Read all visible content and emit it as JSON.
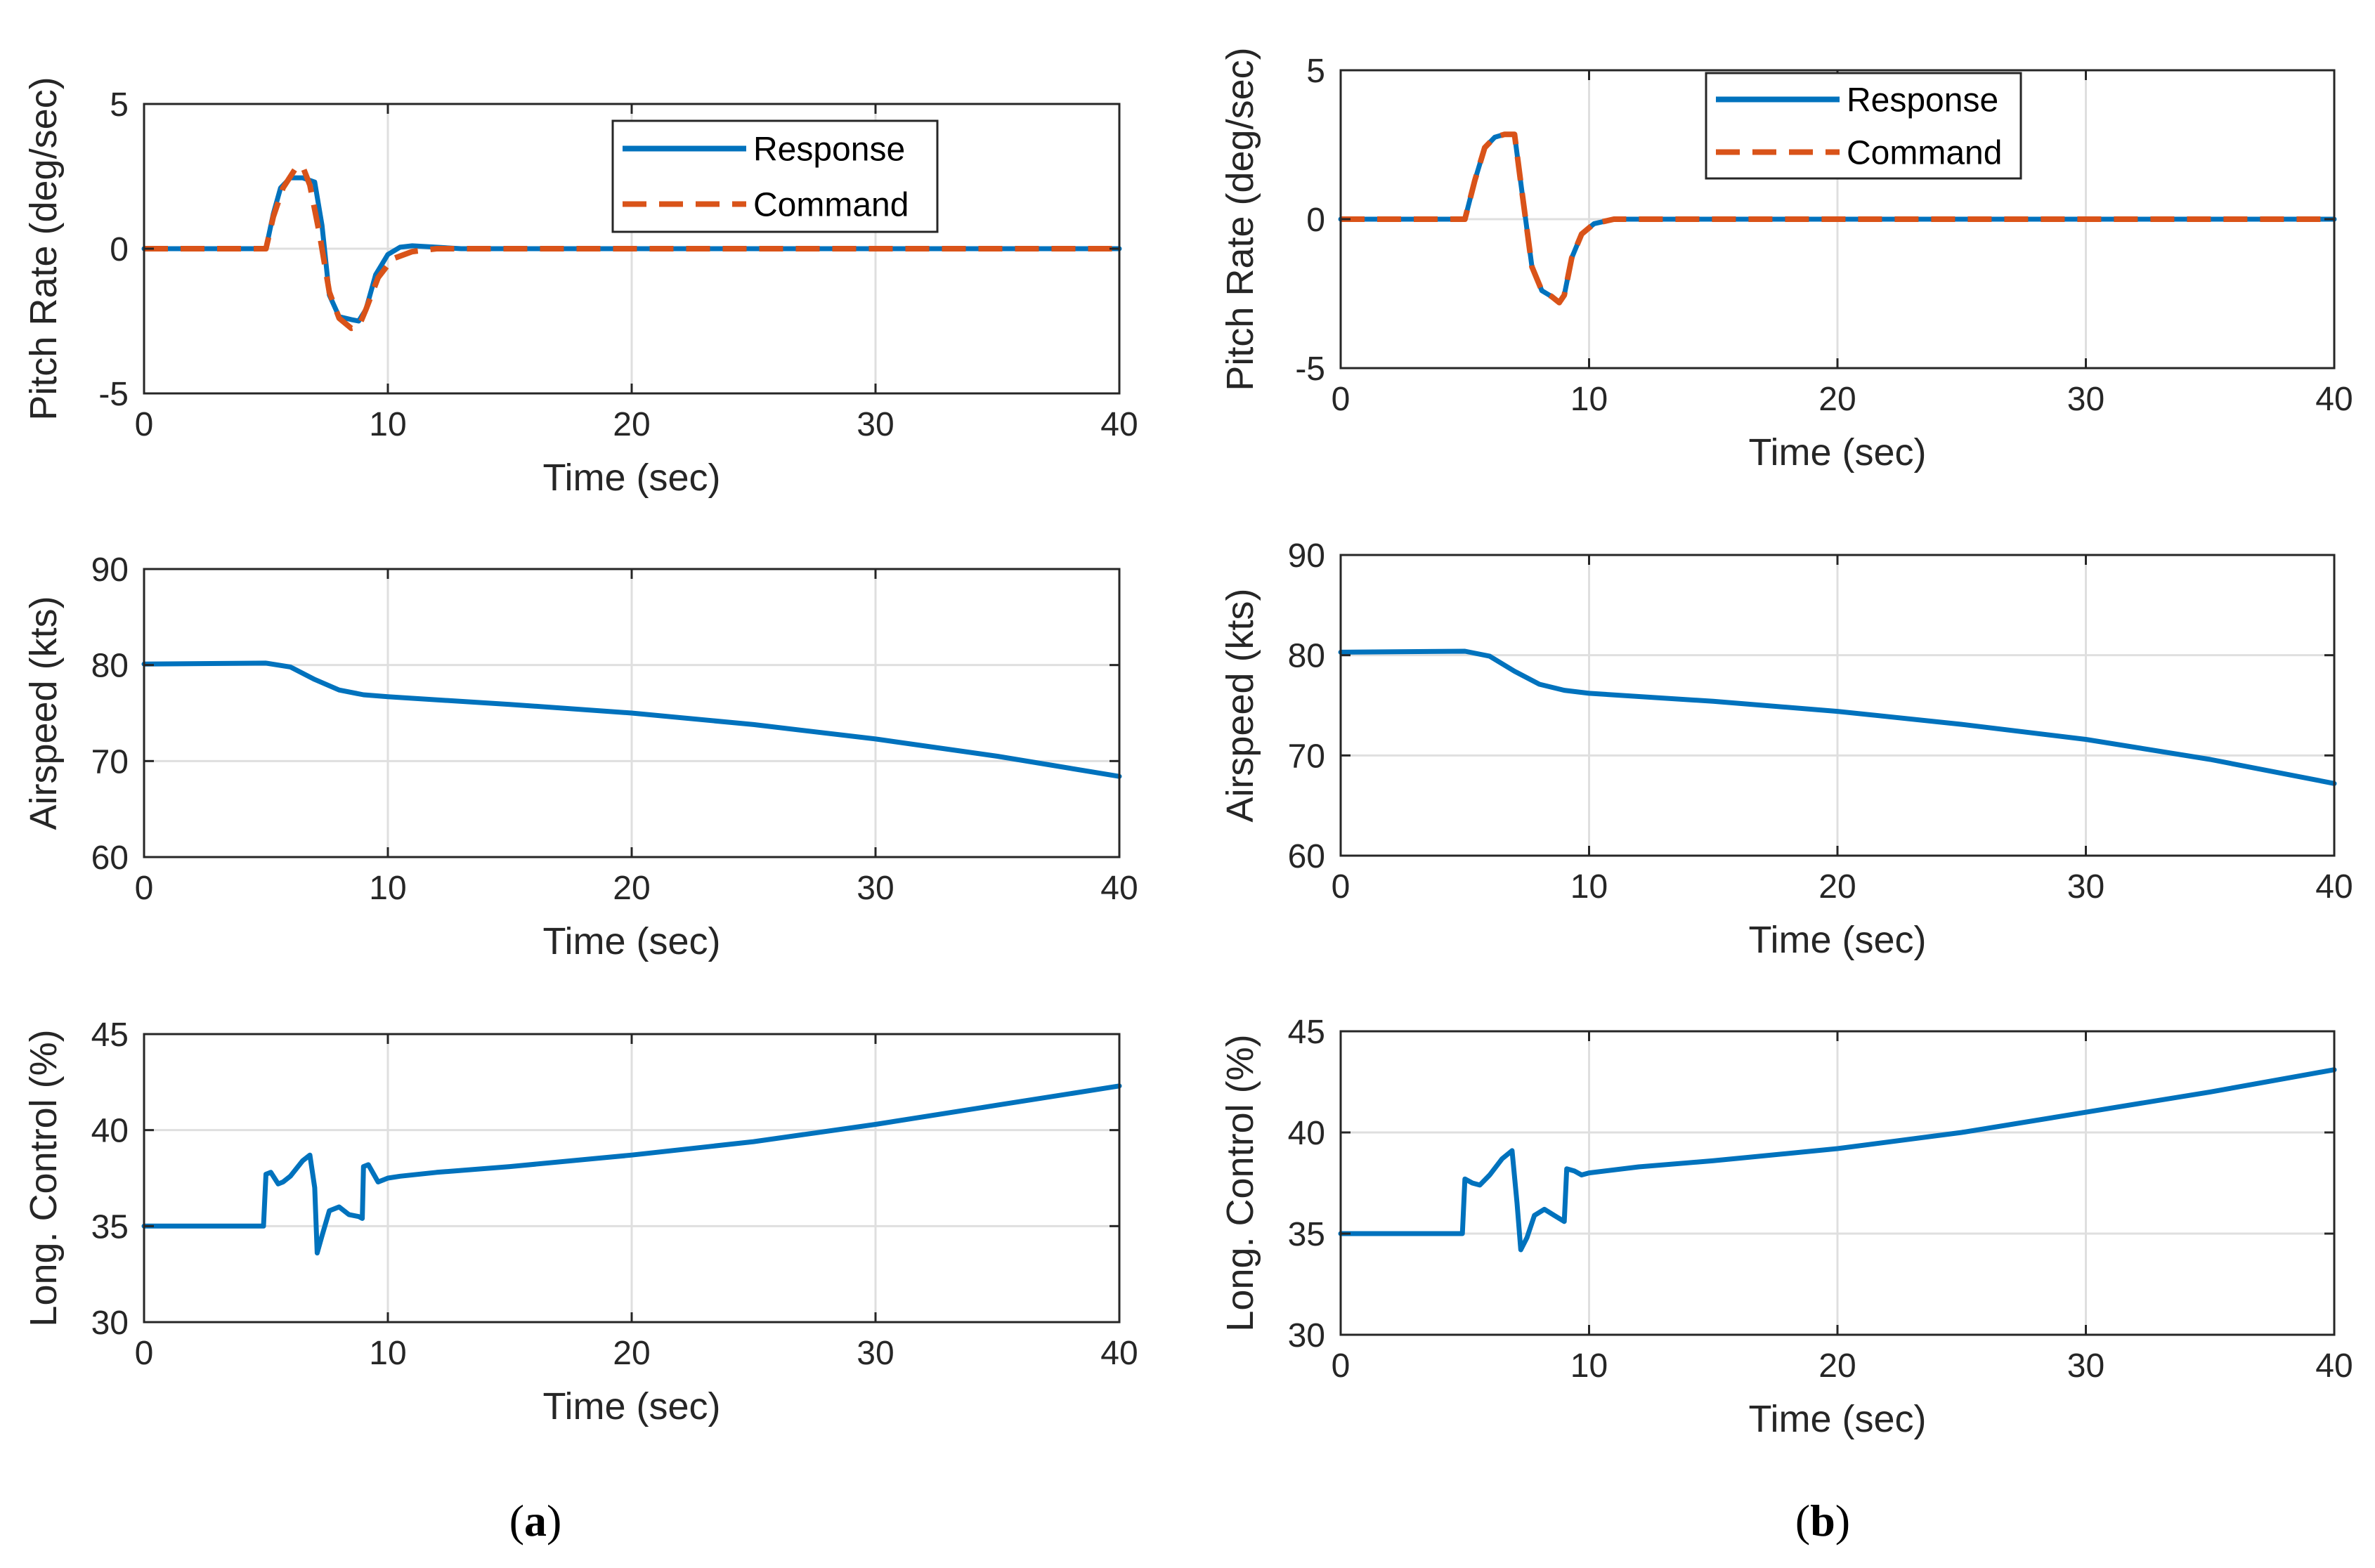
{
  "colors": {
    "response": "#0072BD",
    "command": "#D95319",
    "grid": "#DFDFDF",
    "axis": "#262626"
  },
  "panel_labels": {
    "a": {
      "open": "(",
      "letter": "a",
      "close": ")"
    },
    "b": {
      "open": "(",
      "letter": "b",
      "close": ")"
    }
  },
  "chart_data": [
    {
      "id": "a1",
      "type": "line",
      "xlabel": "Time (sec)",
      "ylabel": "Pitch Rate (deg/sec)",
      "xlim": [
        0,
        40
      ],
      "ylim": [
        -5,
        5
      ],
      "xticks": [
        0,
        10,
        20,
        30,
        40
      ],
      "yticks": [
        -5,
        0,
        5
      ],
      "grid": true,
      "legend": "top-right",
      "series": [
        {
          "name": "Response",
          "style": "solid",
          "x": [
            0,
            5,
            5.3,
            5.6,
            6.0,
            6.5,
            7.0,
            7.3,
            7.6,
            8.0,
            8.5,
            8.8,
            9.1,
            9.5,
            10.0,
            10.5,
            11,
            12,
            13,
            15,
            40
          ],
          "y": [
            0,
            0,
            1.2,
            2.1,
            2.45,
            2.45,
            2.3,
            0.8,
            -1.6,
            -2.35,
            -2.45,
            -2.5,
            -2.1,
            -0.9,
            -0.2,
            0.05,
            0.1,
            0.05,
            0,
            0,
            0
          ]
        },
        {
          "name": "Command",
          "style": "dashed",
          "x": [
            0,
            5,
            5.3,
            5.7,
            6.2,
            6.5,
            6.8,
            7.2,
            7.6,
            8.0,
            8.5,
            8.8,
            9.1,
            9.6,
            10.2,
            11,
            12,
            40
          ],
          "y": [
            0,
            0,
            1.1,
            2.1,
            2.75,
            2.85,
            2.2,
            0.5,
            -1.5,
            -2.4,
            -2.75,
            -2.7,
            -2.1,
            -1.0,
            -0.35,
            -0.1,
            0,
            0
          ]
        }
      ]
    },
    {
      "id": "a2",
      "type": "line",
      "xlabel": "Time (sec)",
      "ylabel": "Airspeed (kts)",
      "xlim": [
        0,
        40
      ],
      "ylim": [
        60,
        90
      ],
      "xticks": [
        0,
        10,
        20,
        30,
        40
      ],
      "yticks": [
        60,
        70,
        80,
        90
      ],
      "grid": true,
      "legend": "none",
      "series": [
        {
          "name": "Response",
          "style": "solid",
          "x": [
            0,
            5,
            6,
            7,
            8,
            9,
            10,
            15,
            20,
            25,
            30,
            35,
            40
          ],
          "y": [
            80.1,
            80.2,
            79.8,
            78.5,
            77.4,
            76.9,
            76.7,
            75.9,
            75.0,
            73.8,
            72.3,
            70.5,
            68.4
          ]
        }
      ]
    },
    {
      "id": "a3",
      "type": "line",
      "xlabel": "Time (sec)",
      "ylabel": "Long. Control (%)",
      "xlim": [
        0,
        40
      ],
      "ylim": [
        30,
        45
      ],
      "xticks": [
        0,
        10,
        20,
        30,
        40
      ],
      "yticks": [
        30,
        35,
        40,
        45
      ],
      "grid": true,
      "legend": "none",
      "series": [
        {
          "name": "Response",
          "style": "solid",
          "x": [
            0,
            4.9,
            5.0,
            5.2,
            5.5,
            5.7,
            6.0,
            6.5,
            6.8,
            7.0,
            7.1,
            7.3,
            7.6,
            8.0,
            8.4,
            8.8,
            8.95,
            9.0,
            9.2,
            9.6,
            9.8,
            10.0,
            10.5,
            12,
            15,
            20,
            25,
            30,
            35,
            40
          ],
          "y": [
            35.0,
            35.0,
            37.7,
            37.8,
            37.2,
            37.3,
            37.6,
            38.4,
            38.7,
            37.0,
            33.6,
            34.5,
            35.8,
            36.0,
            35.6,
            35.5,
            35.4,
            38.1,
            38.2,
            37.3,
            37.4,
            37.5,
            37.6,
            37.8,
            38.1,
            38.7,
            39.4,
            40.3,
            41.3,
            42.3
          ]
        }
      ]
    },
    {
      "id": "b1",
      "type": "line",
      "xlabel": "Time (sec)",
      "ylabel": "Pitch Rate (deg/sec)",
      "xlim": [
        0,
        40
      ],
      "ylim": [
        -5,
        5
      ],
      "xticks": [
        0,
        10,
        20,
        30,
        40
      ],
      "yticks": [
        -5,
        0,
        5
      ],
      "grid": true,
      "legend": "top-center",
      "series": [
        {
          "name": "Response",
          "style": "solid",
          "x": [
            0,
            5,
            5.4,
            5.8,
            6.2,
            6.6,
            7.0,
            7.3,
            7.7,
            8.1,
            8.5,
            8.8,
            9.0,
            9.3,
            9.7,
            10.2,
            11,
            12,
            40
          ],
          "y": [
            0,
            0,
            1.3,
            2.4,
            2.75,
            2.85,
            2.85,
            0.9,
            -1.6,
            -2.4,
            -2.6,
            -2.8,
            -2.55,
            -1.3,
            -0.5,
            -0.15,
            0,
            0,
            0
          ]
        },
        {
          "name": "Command",
          "style": "dashed",
          "x": [
            0,
            5,
            5.4,
            5.8,
            6.2,
            6.6,
            7.0,
            7.3,
            7.7,
            8.1,
            8.5,
            8.8,
            9.0,
            9.3,
            9.7,
            10.2,
            11,
            12,
            40
          ],
          "y": [
            0,
            0,
            1.3,
            2.4,
            2.75,
            2.85,
            2.85,
            0.9,
            -1.6,
            -2.4,
            -2.6,
            -2.8,
            -2.55,
            -1.3,
            -0.5,
            -0.15,
            0,
            0,
            0
          ]
        }
      ]
    },
    {
      "id": "b2",
      "type": "line",
      "xlabel": "Time (sec)",
      "ylabel": "Airspeed (kts)",
      "xlim": [
        0,
        40
      ],
      "ylim": [
        60,
        90
      ],
      "xticks": [
        0,
        10,
        20,
        30,
        40
      ],
      "yticks": [
        60,
        70,
        80,
        90
      ],
      "grid": true,
      "legend": "none",
      "series": [
        {
          "name": "Response",
          "style": "solid",
          "x": [
            0,
            5,
            6,
            7,
            8,
            9,
            10,
            15,
            20,
            25,
            30,
            35,
            40
          ],
          "y": [
            80.3,
            80.4,
            79.9,
            78.4,
            77.1,
            76.5,
            76.2,
            75.4,
            74.4,
            73.1,
            71.6,
            69.6,
            67.2
          ]
        }
      ]
    },
    {
      "id": "b3",
      "type": "line",
      "xlabel": "Time (sec)",
      "ylabel": "Long. Control (%)",
      "xlim": [
        0,
        40
      ],
      "ylim": [
        30,
        45
      ],
      "xticks": [
        0,
        10,
        20,
        30,
        40
      ],
      "yticks": [
        30,
        35,
        40,
        45
      ],
      "grid": true,
      "legend": "none",
      "series": [
        {
          "name": "Response",
          "style": "solid",
          "x": [
            0,
            4.9,
            5.0,
            5.3,
            5.6,
            6.0,
            6.5,
            6.9,
            7.1,
            7.25,
            7.5,
            7.8,
            8.2,
            8.6,
            9.0,
            9.1,
            9.4,
            9.7,
            10.0,
            12,
            15,
            20,
            25,
            30,
            35,
            40
          ],
          "y": [
            35.0,
            35.0,
            37.7,
            37.5,
            37.4,
            37.9,
            38.7,
            39.1,
            36.5,
            34.2,
            34.8,
            35.9,
            36.2,
            35.9,
            35.6,
            38.2,
            38.1,
            37.9,
            38.0,
            38.3,
            38.6,
            39.2,
            40.0,
            41.0,
            42.0,
            43.1
          ]
        }
      ]
    }
  ]
}
